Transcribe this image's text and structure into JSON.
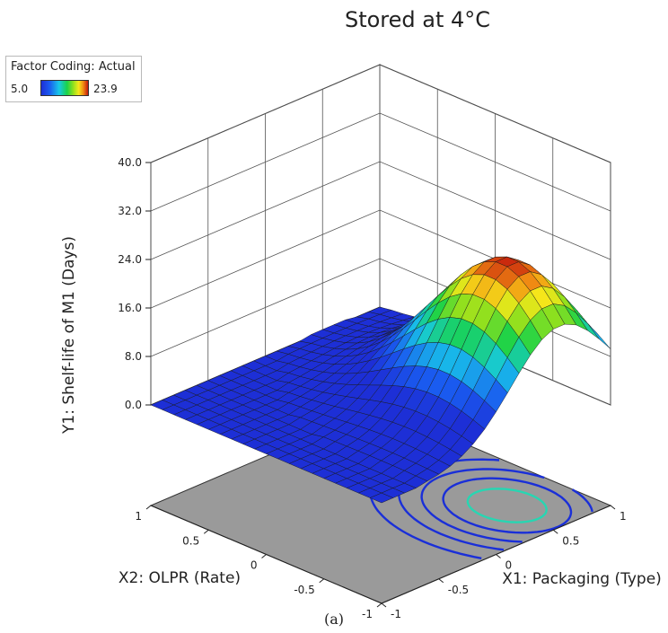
{
  "chart_data": {
    "type": "surface3d",
    "title": "Stored at 4°C",
    "legend": {
      "title": "Factor Coding: Actual",
      "min_label": "5.0",
      "max_label": "23.9",
      "colorscale": [
        "#1d2fd6",
        "#18c8e8",
        "#19d24a",
        "#f5e81a",
        "#f08a13",
        "#c4190c"
      ],
      "placement": "top-left"
    },
    "z_axis": {
      "label": "Y1: Shelf-life of M1 (Days)",
      "ticks": [
        "0.0",
        "8.0",
        "16.0",
        "24.0",
        "32.0",
        "40.0"
      ],
      "range": [
        0,
        40
      ]
    },
    "x1_axis": {
      "label": "X1: Packaging (Type)",
      "ticks": [
        "-1",
        "-0.5",
        "0",
        "0.5",
        "1"
      ],
      "range": [
        -1,
        1
      ]
    },
    "x2_axis": {
      "label": "X2: OLPR (Rate)",
      "ticks": [
        "-1",
        "-0.5",
        "0",
        "0.5",
        "1"
      ],
      "range": [
        -1,
        1
      ]
    },
    "surface": {
      "peak_value": 23.9,
      "peak_x1": 0.55,
      "peak_x2": -0.55,
      "floor_value": 0.0,
      "min_color_value": 5.0,
      "grid_resolution": 20
    },
    "floor_contours": true,
    "grid": true
  },
  "caption": "(a)"
}
